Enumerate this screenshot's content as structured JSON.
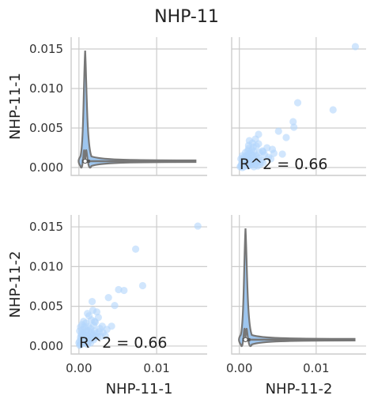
{
  "chart_data": {
    "type": "scatter",
    "title": "NHP-11",
    "variables": [
      "NHP-11-1",
      "NHP-11-2"
    ],
    "axis_range": [
      -0.001,
      0.0165
    ],
    "ticks": [
      0.0,
      0.005,
      0.01,
      0.015
    ],
    "ytick_labels": [
      "0.000",
      "0.005",
      "0.010",
      "0.015"
    ],
    "xtick_labels": [
      "0.00",
      "0.01"
    ],
    "xtick_values": [
      0.0,
      0.01
    ],
    "r2_label": "R^2 = 0.66",
    "diagonal": "violin",
    "points": [
      [
        0.0153,
        0.0151
      ],
      [
        0.0082,
        0.0076
      ],
      [
        0.0073,
        0.0122
      ],
      [
        0.0058,
        0.007
      ],
      [
        0.0051,
        0.0071
      ],
      [
        0.0046,
        0.0051
      ],
      [
        0.0038,
        0.0061
      ],
      [
        0.0042,
        0.0025
      ],
      [
        0.003,
        0.0025
      ],
      [
        0.0027,
        0.0022
      ],
      [
        0.0025,
        0.0036
      ],
      [
        0.0023,
        0.0043
      ],
      [
        0.0021,
        0.003
      ],
      [
        0.002,
        0.0031
      ],
      [
        0.0019,
        0.0026
      ],
      [
        0.0018,
        0.0045
      ],
      [
        0.0017,
        0.0056
      ],
      [
        0.0016,
        0.0033
      ],
      [
        0.0015,
        0.0022
      ],
      [
        0.0013,
        0.0038
      ],
      [
        0.0012,
        0.0025
      ],
      [
        0.0011,
        0.0041
      ],
      [
        0.001,
        0.002
      ],
      [
        0.0009,
        0.0029
      ],
      [
        0.0008,
        0.0018
      ],
      [
        0.0007,
        0.0024
      ],
      [
        0.0006,
        0.0015
      ],
      [
        0.0005,
        0.0012
      ],
      [
        0.0004,
        0.0016
      ],
      [
        0.0003,
        0.0009
      ],
      [
        0.0002,
        0.0011
      ],
      [
        0.0001,
        0.0006
      ],
      [
        0.0,
        0.0004
      ],
      [
        0.0002,
        0.0002
      ],
      [
        0.0004,
        0.0005
      ],
      [
        0.0006,
        0.0008
      ],
      [
        0.0008,
        0.0006
      ],
      [
        0.001,
        0.001
      ],
      [
        0.0012,
        0.0013
      ],
      [
        0.0014,
        0.0011
      ],
      [
        0.0016,
        0.0017
      ],
      [
        0.0018,
        0.0014
      ],
      [
        0.002,
        0.0019
      ],
      [
        0.0022,
        0.0016
      ],
      [
        0.0024,
        0.0012
      ],
      [
        0.0026,
        0.0018
      ],
      [
        0.0003,
        0.0014
      ],
      [
        0.0005,
        0.0021
      ],
      [
        0.0007,
        0.001
      ],
      [
        0.0009,
        0.0013
      ],
      [
        0.0011,
        0.0007
      ],
      [
        0.0013,
        0.0019
      ],
      [
        0.0015,
        0.0009
      ],
      [
        0.0017,
        0.0012
      ],
      [
        0.0019,
        0.0008
      ],
      [
        0.0021,
        0.0011
      ],
      [
        0.0001,
        0.0019
      ],
      [
        0.0002,
        0.0024
      ],
      [
        0.0004,
        0.0027
      ],
      [
        0.0006,
        0.0031
      ],
      [
        0.0001,
        0.0001
      ],
      [
        0.0003,
        0.0003
      ],
      [
        0.0005,
        0.0003
      ],
      [
        0.0007,
        0.0005
      ],
      [
        0.0009,
        0.0004
      ],
      [
        0.0011,
        0.0002
      ],
      [
        0.0013,
        0.0006
      ],
      [
        0.0015,
        0.0004
      ],
      [
        0.0028,
        0.0012
      ],
      [
        0.0031,
        0.0017
      ],
      [
        0.0034,
        0.0013
      ],
      [
        0.0036,
        0.0021
      ]
    ],
    "violin_median": 0.0008
  }
}
